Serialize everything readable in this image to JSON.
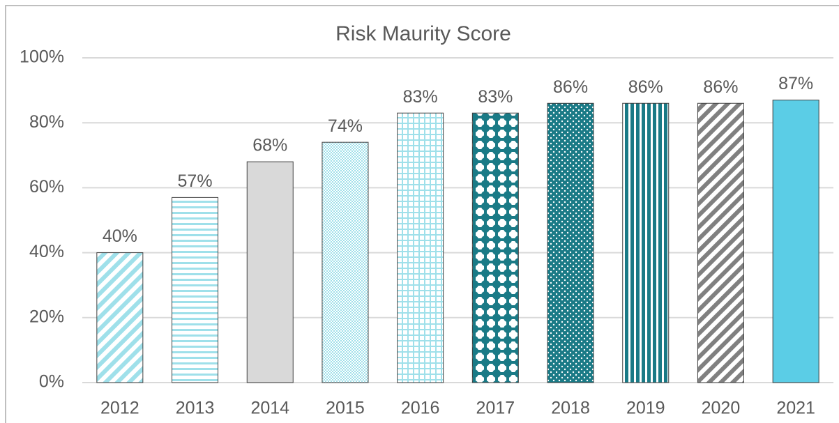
{
  "chart_data": {
    "type": "bar",
    "title": "Risk Maurity Score",
    "categories": [
      "2012",
      "2013",
      "2014",
      "2015",
      "2016",
      "2017",
      "2018",
      "2019",
      "2020",
      "2021"
    ],
    "values": [
      40,
      57,
      68,
      74,
      83,
      83,
      86,
      86,
      86,
      87
    ],
    "value_labels": [
      "40%",
      "57%",
      "68%",
      "74%",
      "83%",
      "83%",
      "86%",
      "86%",
      "86%",
      "87%"
    ],
    "colors": [
      "#9fe0ea",
      "#9fe0ea",
      "#d9d9d9",
      "#9fe0ea",
      "#9fe0ea",
      "#1a7a86",
      "#1a7a86",
      "#1a7a86",
      "#808080",
      "#5bcde6"
    ],
    "patterns": [
      "diagonal",
      "horizontal",
      "solid",
      "fine-dots",
      "grid",
      "plaid",
      "dots",
      "vertical",
      "diagonal",
      "solid"
    ],
    "ylim": [
      0,
      100
    ],
    "yticks": [
      {
        "value": 0,
        "label": "0%"
      },
      {
        "value": 20,
        "label": "20%"
      },
      {
        "value": 40,
        "label": "40%"
      },
      {
        "value": 60,
        "label": "60%"
      },
      {
        "value": 80,
        "label": "80%"
      },
      {
        "value": 100,
        "label": "100%"
      }
    ],
    "grid": true
  }
}
